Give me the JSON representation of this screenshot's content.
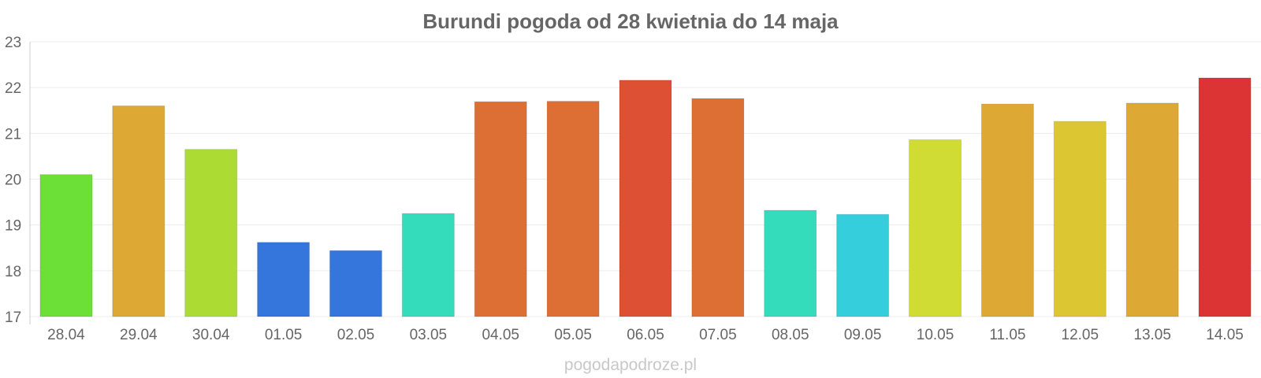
{
  "chart_data": {
    "type": "bar",
    "title": "Burundi pogoda od 28 kwietnia do 14 maja",
    "xlabel": "",
    "ylabel": "",
    "categories": [
      "28.04",
      "29.04",
      "30.04",
      "01.05",
      "02.05",
      "03.05",
      "04.05",
      "05.05",
      "06.05",
      "07.05",
      "08.05",
      "09.05",
      "10.05",
      "11.05",
      "12.05",
      "13.05",
      "14.05"
    ],
    "values": [
      20.1,
      21.6,
      20.65,
      18.62,
      18.44,
      19.25,
      21.69,
      21.7,
      22.16,
      21.76,
      19.32,
      19.23,
      20.86,
      21.64,
      21.26,
      21.66,
      22.21
    ],
    "colors": [
      "#6ce036",
      "#dea834",
      "#acdc33",
      "#3476dc",
      "#3476dc",
      "#34dcbb",
      "#de6f34",
      "#de6f34",
      "#dd5034",
      "#de6f34",
      "#34dcbb",
      "#34cedc",
      "#d0dc33",
      "#dea834",
      "#dcc733",
      "#dea834",
      "#dc3434"
    ],
    "ylim": [
      17,
      23
    ],
    "yticks": [
      17,
      18,
      19,
      20,
      21,
      22,
      23
    ],
    "grid": true,
    "legend": "none"
  },
  "watermark": "pogodapodroze.pl"
}
